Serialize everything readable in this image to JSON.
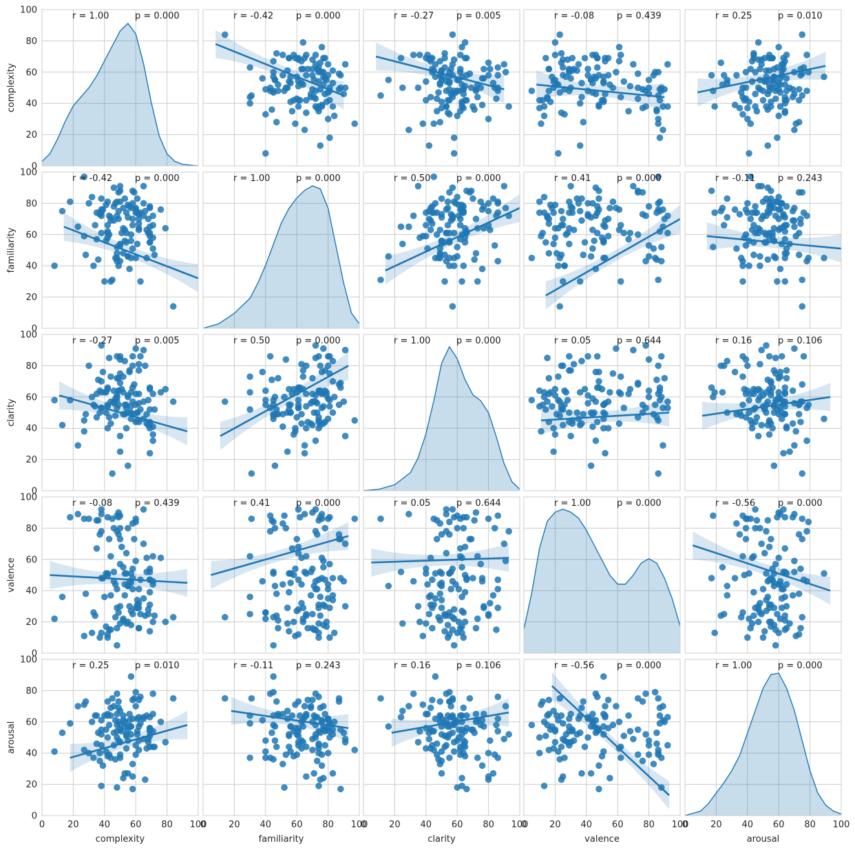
{
  "chart_data": {
    "type": "scatter",
    "kind": "pairplot",
    "variables": [
      "complexity",
      "familiarity",
      "clarity",
      "valence",
      "arousal"
    ],
    "axis_range": [
      0,
      100
    ],
    "ticks": [
      0,
      20,
      40,
      60,
      80,
      100
    ],
    "grid": true,
    "point_color": "#1f77b4",
    "annotations": [
      [
        {
          "r": "r = 1.00",
          "p": "p = 0.000"
        },
        {
          "r": "r = -0.42",
          "p": "p = 0.000"
        },
        {
          "r": "r = -0.27",
          "p": "p = 0.005"
        },
        {
          "r": "r = -0.08",
          "p": "p = 0.439"
        },
        {
          "r": "r = 0.25",
          "p": "p = 0.010"
        }
      ],
      [
        {
          "r": "r = -0.42",
          "p": "p = 0.000"
        },
        {
          "r": "r = 1.00",
          "p": "p = 0.000"
        },
        {
          "r": "r = 0.50",
          "p": "p = 0.000"
        },
        {
          "r": "r = 0.41",
          "p": "p = 0.000"
        },
        {
          "r": "r = -0.11",
          "p": "p = 0.243"
        }
      ],
      [
        {
          "r": "r = -0.27",
          "p": "p = 0.005"
        },
        {
          "r": "r = 0.50",
          "p": "p = 0.000"
        },
        {
          "r": "r = 1.00",
          "p": "p = 0.000"
        },
        {
          "r": "r = 0.05",
          "p": "p = 0.644"
        },
        {
          "r": "r = 0.16",
          "p": "p = 0.106"
        }
      ],
      [
        {
          "r": "r = -0.08",
          "p": "p = 0.439"
        },
        {
          "r": "r = 0.41",
          "p": "p = 0.000"
        },
        {
          "r": "r = 0.05",
          "p": "p = 0.644"
        },
        {
          "r": "r = 1.00",
          "p": "p = 0.000"
        },
        {
          "r": "r = -0.56",
          "p": "p = 0.000"
        }
      ],
      [
        {
          "r": "r = 0.25",
          "p": "p = 0.010"
        },
        {
          "r": "r = -0.11",
          "p": "p = 0.243"
        },
        {
          "r": "r = 0.16",
          "p": "p = 0.106"
        },
        {
          "r": "r = -0.56",
          "p": "p = 0.000"
        },
        {
          "r": "r = 1.00",
          "p": "p = 0.000"
        }
      ]
    ],
    "regressions": {
      "1-0": {
        "x": [
          8,
          90
        ],
        "y": [
          78,
          45
        ]
      },
      "2-0": {
        "x": [
          8,
          90
        ],
        "y": [
          70,
          49
        ]
      },
      "3-0": {
        "x": [
          8,
          90
        ],
        "y": [
          52,
          44
        ]
      },
      "4-0": {
        "x": [
          8,
          90
        ],
        "y": [
          47,
          64
        ]
      },
      "0-1": {
        "x": [
          14,
          100
        ],
        "y": [
          65,
          32
        ]
      },
      "2-1": {
        "x": [
          14,
          100
        ],
        "y": [
          37,
          77
        ]
      },
      "3-1": {
        "x": [
          14,
          100
        ],
        "y": [
          21,
          70
        ]
      },
      "4-1": {
        "x": [
          14,
          100
        ],
        "y": [
          59,
          51
        ]
      },
      "0-2": {
        "x": [
          11,
          93
        ],
        "y": [
          61,
          38
        ]
      },
      "1-2": {
        "x": [
          11,
          93
        ],
        "y": [
          35,
          80
        ]
      },
      "3-2": {
        "x": [
          11,
          93
        ],
        "y": [
          45,
          50
        ]
      },
      "4-2": {
        "x": [
          11,
          93
        ],
        "y": [
          48,
          60
        ]
      },
      "0-3": {
        "x": [
          5,
          93
        ],
        "y": [
          50,
          45
        ]
      },
      "1-3": {
        "x": [
          5,
          93
        ],
        "y": [
          50,
          75
        ]
      },
      "2-3": {
        "x": [
          5,
          93
        ],
        "y": [
          58,
          61
        ]
      },
      "4-3": {
        "x": [
          5,
          93
        ],
        "y": [
          69,
          40
        ]
      },
      "0-4": {
        "x": [
          18,
          93
        ],
        "y": [
          37,
          58
        ]
      },
      "1-4": {
        "x": [
          18,
          93
        ],
        "y": [
          67,
          56
        ]
      },
      "2-4": {
        "x": [
          18,
          93
        ],
        "y": [
          53,
          66
        ]
      },
      "3-4": {
        "x": [
          18,
          93
        ],
        "y": [
          83,
          13
        ]
      }
    },
    "kde": [
      {
        "x": [
          0,
          5,
          10,
          15,
          20,
          25,
          30,
          35,
          40,
          45,
          50,
          55,
          60,
          65,
          70,
          75,
          80,
          85,
          90,
          95,
          100
        ],
        "y": [
          0.03,
          0.08,
          0.18,
          0.3,
          0.4,
          0.46,
          0.52,
          0.6,
          0.7,
          0.8,
          0.9,
          0.95,
          0.88,
          0.68,
          0.42,
          0.2,
          0.08,
          0.03,
          0.01,
          0.005,
          0
        ]
      },
      {
        "x": [
          0,
          10,
          20,
          30,
          35,
          40,
          45,
          50,
          55,
          60,
          65,
          70,
          75,
          80,
          85,
          90,
          95,
          100
        ],
        "y": [
          0,
          0.03,
          0.1,
          0.2,
          0.3,
          0.42,
          0.56,
          0.7,
          0.8,
          0.87,
          0.92,
          0.95,
          0.93,
          0.8,
          0.55,
          0.3,
          0.1,
          0.03
        ]
      },
      {
        "x": [
          0,
          10,
          20,
          30,
          35,
          40,
          45,
          50,
          55,
          60,
          65,
          70,
          75,
          80,
          85,
          90,
          95,
          100
        ],
        "y": [
          0,
          0.01,
          0.04,
          0.12,
          0.22,
          0.38,
          0.6,
          0.85,
          0.96,
          0.88,
          0.74,
          0.64,
          0.6,
          0.52,
          0.36,
          0.18,
          0.06,
          0.01
        ]
      },
      {
        "x": [
          0,
          5,
          10,
          15,
          20,
          25,
          30,
          35,
          40,
          45,
          50,
          55,
          60,
          65,
          70,
          75,
          80,
          85,
          90,
          95,
          100
        ],
        "y": [
          0.16,
          0.4,
          0.7,
          0.88,
          0.94,
          0.96,
          0.94,
          0.9,
          0.82,
          0.72,
          0.62,
          0.52,
          0.46,
          0.46,
          0.52,
          0.6,
          0.63,
          0.6,
          0.5,
          0.36,
          0.18
        ]
      },
      {
        "x": [
          0,
          10,
          15,
          20,
          25,
          30,
          35,
          40,
          45,
          50,
          55,
          60,
          65,
          70,
          75,
          80,
          85,
          90,
          95,
          100
        ],
        "y": [
          0,
          0.03,
          0.08,
          0.15,
          0.22,
          0.3,
          0.4,
          0.55,
          0.7,
          0.85,
          0.94,
          0.95,
          0.85,
          0.7,
          0.5,
          0.3,
          0.15,
          0.07,
          0.03,
          0.01
        ]
      }
    ],
    "points": {
      "complexity": [
        62,
        38,
        53,
        43,
        48,
        71,
        58,
        55,
        66,
        47,
        48,
        50,
        45,
        49,
        69,
        44,
        42,
        69,
        63,
        42,
        60,
        41,
        48,
        63,
        38,
        54,
        41,
        60,
        43,
        27,
        84,
        67,
        55,
        71,
        69,
        62,
        57,
        40,
        69,
        54,
        28,
        65,
        52,
        68,
        59,
        38,
        69,
        54,
        53,
        35,
        62,
        34,
        58,
        50,
        79,
        68,
        71,
        58,
        49,
        37,
        52,
        65,
        55,
        69,
        18,
        62,
        48,
        50,
        61,
        48,
        65,
        53,
        58,
        37,
        23,
        51,
        42,
        57,
        44,
        60,
        50,
        35,
        46,
        49,
        57,
        46,
        76,
        49,
        72,
        58,
        57,
        55,
        61,
        50,
        50,
        69,
        71,
        61,
        67,
        42,
        47,
        52,
        62,
        56,
        44,
        32,
        56,
        36,
        39,
        38,
        13,
        46,
        60,
        8,
        42,
        38,
        30,
        33,
        27,
        48
      ],
      "familiarity": [
        64,
        83,
        63,
        60,
        43,
        51,
        70,
        46,
        75,
        80,
        48,
        91,
        31,
        87,
        65,
        69,
        58,
        55,
        30,
        81,
        76,
        56,
        81,
        74,
        61,
        74,
        79,
        74,
        72,
        59,
        14,
        45,
        79,
        66,
        59,
        63,
        60,
        30,
        55,
        55,
        47,
        72,
        48,
        61,
        87,
        76,
        61,
        61,
        83,
        74,
        73,
        66,
        88,
        43,
        64,
        70,
        72,
        80,
        70,
        73,
        77,
        80,
        46,
        77,
        81,
        70,
        45,
        54,
        83,
        72,
        91,
        56,
        66,
        74,
        65,
        61,
        61,
        56,
        30,
        45,
        88,
        57,
        69,
        40,
        45,
        90,
        76,
        75,
        47,
        51,
        77,
        71,
        54,
        53,
        81,
        78,
        58,
        74,
        63,
        66,
        45,
        64,
        67,
        38,
        71,
        84,
        78,
        44,
        76,
        74,
        75,
        78,
        77,
        40,
        62,
        72,
        80,
        40,
        97,
        52
      ],
      "clarity": [
        77,
        70,
        49,
        47,
        53,
        41,
        57,
        60,
        80,
        59,
        72,
        35,
        11,
        55,
        24,
        43,
        65,
        52,
        52,
        54,
        62,
        50,
        86,
        86,
        53,
        40,
        63,
        44,
        85,
        38,
        57,
        49,
        61,
        62,
        40,
        81,
        63,
        63,
        65,
        55,
        49,
        57,
        49,
        58,
        68,
        53,
        66,
        53,
        83,
        47,
        56,
        54,
        66,
        86,
        65,
        42,
        32,
        86,
        72,
        50,
        63,
        46,
        16,
        43,
        58,
        62,
        58,
        25,
        50,
        61,
        90,
        55,
        80,
        64,
        29,
        65,
        55,
        50,
        73,
        55,
        69,
        62,
        56,
        64,
        46,
        57,
        63,
        64,
        52,
        49,
        54,
        50,
        50,
        84,
        75,
        44,
        36,
        45,
        43,
        40,
        48,
        73,
        44,
        76,
        57,
        60,
        77,
        71,
        76,
        63,
        42,
        64,
        91,
        58,
        66,
        93,
        80,
        55,
        45,
        60
      ],
      "valence": [
        29,
        48,
        44,
        73,
        78,
        44,
        54,
        80,
        24,
        44,
        16,
        30,
        86,
        76,
        52,
        37,
        50,
        14,
        25,
        10,
        86,
        51,
        29,
        47,
        92,
        19,
        17,
        29,
        15,
        11,
        23,
        52,
        20,
        62,
        54,
        32,
        27,
        36,
        39,
        51,
        38,
        92,
        21,
        28,
        73,
        89,
        47,
        64,
        37,
        85,
        41,
        24,
        48,
        88,
        20,
        25,
        46,
        41,
        90,
        76,
        55,
        35,
        43,
        31,
        87,
        16,
        5,
        19,
        34,
        41,
        70,
        51,
        25,
        10,
        89,
        68,
        12,
        45,
        62,
        84,
        73,
        67,
        52,
        26,
        51,
        46,
        61,
        87,
        24,
        83,
        18,
        43,
        29,
        80,
        57,
        47,
        20,
        31,
        61,
        51,
        23,
        22,
        16,
        46,
        15,
        13,
        30,
        85,
        48,
        13,
        36,
        80,
        59,
        22,
        87,
        78,
        86,
        26,
        86,
        88
      ],
      "arousal": [
        57,
        55,
        60,
        39,
        78,
        65,
        74,
        48,
        23,
        61,
        65,
        47,
        75,
        73,
        63,
        69,
        38,
        51,
        59,
        50,
        39,
        41,
        54,
        76,
        45,
        43,
        55,
        45,
        58,
        71,
        75,
        64,
        55,
        44,
        56,
        48,
        52,
        64,
        44,
        52,
        73,
        63,
        64,
        47,
        75,
        61,
        56,
        51,
        27,
        46,
        63,
        64,
        17,
        37,
        47,
        49,
        78,
        62,
        60,
        35,
        24,
        62,
        57,
        55,
        59,
        42,
        58,
        67,
        52,
        50,
        49,
        57,
        25,
        40,
        70,
        54,
        73,
        57,
        37,
        79,
        55,
        64,
        70,
        48,
        89,
        53,
        60,
        69,
        44,
        33,
        57,
        27,
        62,
        39,
        58,
        54,
        54,
        54,
        43,
        65,
        36,
        61,
        74,
        61,
        64,
        60,
        65,
        53,
        32,
        19,
        53,
        45,
        70,
        41,
        64,
        52,
        40,
        37,
        42,
        18
      ]
    }
  }
}
